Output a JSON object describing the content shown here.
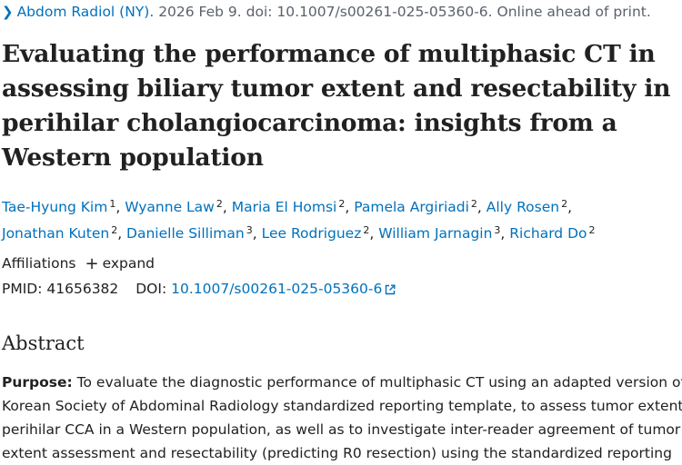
{
  "citation": {
    "journal": "Abdom Radiol (NY).",
    "details": "2026 Feb 9. doi: 10.1007/s00261-025-05360-6. Online ahead of print."
  },
  "title": "Evaluating the performance of multiphasic CT in assessing biliary tumor extent and resectability in perihilar cholangiocarcinoma: insights from a Western population",
  "authors": [
    {
      "name": "Tae-Hyung Kim",
      "aff": "1"
    },
    {
      "name": "Wyanne Law",
      "aff": "2"
    },
    {
      "name": "Maria El Homsi",
      "aff": "2"
    },
    {
      "name": "Pamela Argiriadi",
      "aff": "2"
    },
    {
      "name": "Ally Rosen",
      "aff": "2"
    },
    {
      "name": "Jonathan Kuten",
      "aff": "2"
    },
    {
      "name": "Danielle Silliman",
      "aff": "3"
    },
    {
      "name": "Lee Rodriguez",
      "aff": "2"
    },
    {
      "name": "William Jarnagin",
      "aff": "3"
    },
    {
      "name": "Richard Do",
      "aff": "2"
    }
  ],
  "affiliations": {
    "label": "Affiliations",
    "expand_label": "expand"
  },
  "identifiers": {
    "pmid_label": "PMID:",
    "pmid": "41656382",
    "doi_label": "DOI:",
    "doi": "10.1007/s00261-025-05360-6"
  },
  "abstract": {
    "heading": "Abstract",
    "purpose_label": "Purpose:",
    "lines": [
      "To evaluate the diagnostic performance of multiphasic CT using an adapted version of the",
      "Korean Society of Abdominal Radiology standardized reporting template, to assess tumor extent of",
      "perihilar CCA in a Western population, as well as to investigate inter-reader agreement of tumor",
      "extent assessment and resectability (predicting R0 resection) using the standardized reporting"
    ]
  },
  "colors": {
    "link": "#0071bc",
    "text": "#212121",
    "muted": "#5b616b"
  }
}
